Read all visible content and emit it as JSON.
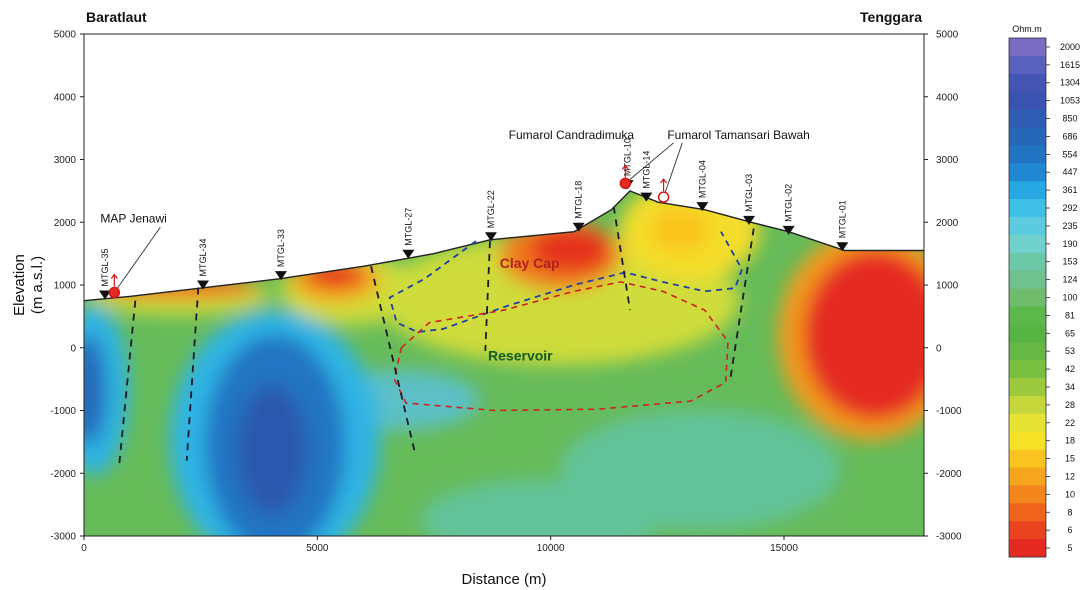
{
  "chart_data": {
    "type": "heatmap",
    "title_left": "Baratlaut",
    "title_right": "Tenggara",
    "xlabel": "Distance (m)",
    "ylabel_line1": "Elevation",
    "ylabel_line2": "(m a.s.l.)",
    "xlim": [
      0,
      18000
    ],
    "ylim": [
      -3000,
      5000
    ],
    "x_ticks": [
      "0",
      "5000",
      "10000",
      "15000"
    ],
    "y_ticks": [
      "5000",
      "4000",
      "3000",
      "2000",
      "1000",
      "0",
      "-1000",
      "-2000",
      "-3000"
    ],
    "topography": [
      [
        0,
        750
      ],
      [
        1000,
        820
      ],
      [
        2500,
        950
      ],
      [
        4200,
        1100
      ],
      [
        6000,
        1300
      ],
      [
        7500,
        1500
      ],
      [
        8700,
        1720
      ],
      [
        10500,
        1850
      ],
      [
        11300,
        2200
      ],
      [
        11700,
        2500
      ],
      [
        12300,
        2320
      ],
      [
        13300,
        2200
      ],
      [
        14300,
        2000
      ],
      [
        15100,
        1850
      ],
      [
        16300,
        1550
      ],
      [
        18000,
        1550
      ]
    ],
    "stations": [
      {
        "name": "MTGL-35",
        "x": 450,
        "y": 800
      },
      {
        "name": "MTGL-34",
        "x": 2550,
        "y": 960
      },
      {
        "name": "MTGL-33",
        "x": 4220,
        "y": 1110
      },
      {
        "name": "MTGL-27",
        "x": 6950,
        "y": 1450
      },
      {
        "name": "MTGL-22",
        "x": 8720,
        "y": 1730
      },
      {
        "name": "MTGL-18",
        "x": 10600,
        "y": 1880
      },
      {
        "name": "MTGL-10",
        "x": 11650,
        "y": 2560
      },
      {
        "name": "MTGL-14",
        "x": 12050,
        "y": 2360
      },
      {
        "name": "MTGL-04",
        "x": 13250,
        "y": 2210
      },
      {
        "name": "MTGL-03",
        "x": 14250,
        "y": 1990
      },
      {
        "name": "MTGL-02",
        "x": 15100,
        "y": 1830
      },
      {
        "name": "MTGL-01",
        "x": 16250,
        "y": 1570
      }
    ],
    "annotations": [
      {
        "text": "MAP Jenawi",
        "label_x": 350,
        "label_y": 2000,
        "point_x": 650,
        "point_y": 880
      },
      {
        "text": "Fumarol Candradimuka",
        "label_x": 9100,
        "label_y": 3330,
        "point_x": 11600,
        "point_y": 2620
      },
      {
        "text": "Fumarol Tamansari Bawah",
        "label_x": 12500,
        "label_y": 3330,
        "point_x": 12420,
        "point_y": 2400
      }
    ],
    "zone_labels": [
      {
        "text": "Clay Cap",
        "x": 9550,
        "y": 1270,
        "color": "#b31f1f"
      },
      {
        "text": "Reservoir",
        "x": 9350,
        "y": -200,
        "color": "#145c22"
      }
    ],
    "faults": [
      [
        [
          1100,
          750
        ],
        [
          750,
          -1900
        ]
      ],
      [
        [
          2450,
          960
        ],
        [
          2200,
          -1800
        ]
      ],
      [
        [
          6150,
          1300
        ],
        [
          7100,
          -1700
        ]
      ],
      [
        [
          8700,
          1700
        ],
        [
          8600,
          -50
        ]
      ],
      [
        [
          11350,
          2250
        ],
        [
          11700,
          600
        ]
      ],
      [
        [
          14350,
          1900
        ],
        [
          13850,
          -500
        ]
      ]
    ],
    "clay_cap_boundary": [
      [
        8400,
        1700
      ],
      [
        7300,
        1100
      ],
      [
        6550,
        800
      ],
      [
        6700,
        400
      ],
      [
        7150,
        250
      ],
      [
        7700,
        300
      ],
      [
        9000,
        650
      ],
      [
        10500,
        1000
      ],
      [
        11600,
        1200
      ],
      [
        12400,
        1050
      ],
      [
        13300,
        900
      ],
      [
        13950,
        950
      ],
      [
        14100,
        1250
      ],
      [
        13650,
        1850
      ]
    ],
    "reservoir_boundary": [
      [
        6800,
        0
      ],
      [
        7400,
        400
      ],
      [
        9000,
        600
      ],
      [
        10500,
        900
      ],
      [
        11500,
        1050
      ],
      [
        12400,
        900
      ],
      [
        13300,
        600
      ],
      [
        13800,
        100
      ],
      [
        13750,
        -550
      ],
      [
        13000,
        -850
      ],
      [
        11000,
        -980
      ],
      [
        8800,
        -1000
      ],
      [
        6900,
        -880
      ],
      [
        6650,
        -500
      ],
      [
        6800,
        0
      ]
    ],
    "legend": {
      "unit": "Ohm.m",
      "values": [
        "2000",
        "1615",
        "1304",
        "1053",
        "850",
        "686",
        "554",
        "447",
        "361",
        "292",
        "235",
        "190",
        "153",
        "124",
        "100",
        "81",
        "65",
        "53",
        "42",
        "34",
        "28",
        "22",
        "18",
        "15",
        "12",
        "10",
        "8",
        "6",
        "5"
      ],
      "colors": [
        "#7a6cc4",
        "#5a61bd",
        "#4555b4",
        "#3a53b0",
        "#2f5db3",
        "#2667b8",
        "#2274c2",
        "#2088d2",
        "#28a8e3",
        "#3fc0e8",
        "#5ccbe0",
        "#6fd0cc",
        "#6cc9a8",
        "#6fc28e",
        "#6fbd6c",
        "#5db84c",
        "#56b443",
        "#64b843",
        "#79bf40",
        "#9cc93e",
        "#c4d63a",
        "#e4e232",
        "#f6e127",
        "#f9c41f",
        "#f6a51c",
        "#f3861c",
        "#ee641d",
        "#e9431f",
        "#e52a22"
      ]
    },
    "grid": false
  }
}
